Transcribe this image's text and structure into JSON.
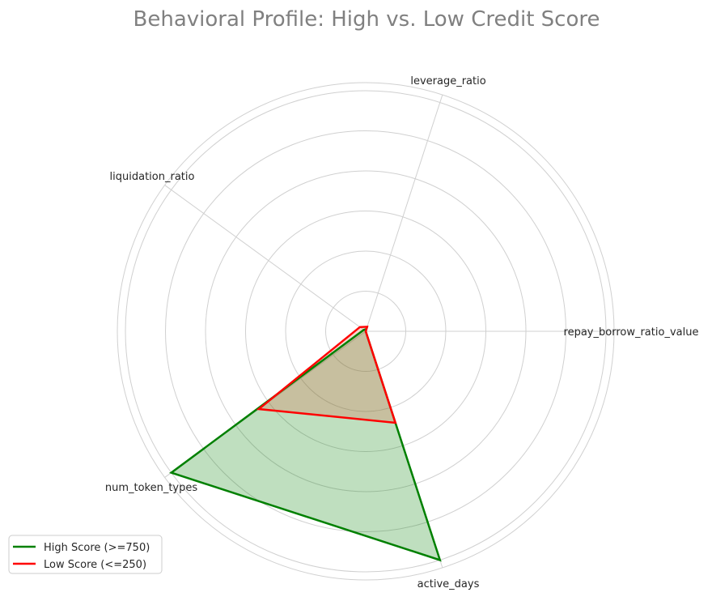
{
  "chart_data": {
    "type": "radar",
    "title": "Behavioral Profile: High vs. Low Credit Score",
    "axes": [
      "repay_borrow_ratio_value",
      "leverage_ratio",
      "liquidation_ratio",
      "num_token_types",
      "active_days"
    ],
    "rmax": 1.0,
    "grid": true,
    "legend_position": "lower-left",
    "series": [
      {
        "name": "High Score (>=750)",
        "values": [
          0.0,
          0.01,
          0.01,
          1.0,
          1.0
        ],
        "color": "#008000",
        "fill": "#008000"
      },
      {
        "name": "Low Score (<=250)",
        "values": [
          0.0,
          0.02,
          0.03,
          0.55,
          0.4
        ],
        "color": "#ff0000",
        "fill": "#e06040"
      }
    ]
  }
}
